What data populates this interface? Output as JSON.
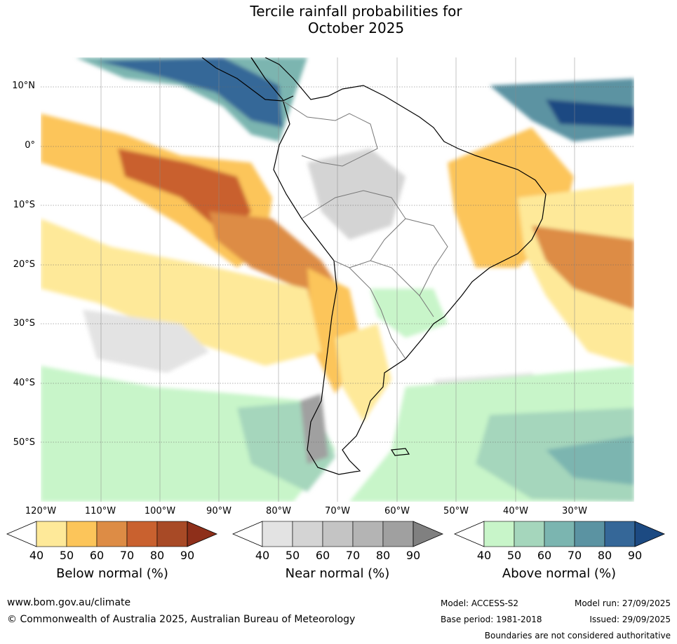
{
  "title_line1": "Tercile rainfall probabilities for",
  "title_line2": "October 2025",
  "y_axis": [
    "10°N",
    "0°",
    "10°S",
    "20°S",
    "30°S",
    "40°S",
    "50°S"
  ],
  "x_axis": [
    "120°W",
    "110°W",
    "100°W",
    "90°W",
    "80°W",
    "70°W",
    "60°W",
    "50°W",
    "40°W",
    "30°W"
  ],
  "legends": [
    {
      "title": "Below normal (%)",
      "ticks": [
        "40",
        "50",
        "60",
        "70",
        "80",
        "90"
      ],
      "colors": [
        "#fee999",
        "#fcc55a",
        "#dd8c45",
        "#c9612f",
        "#a84a26",
        "#8e2f1a"
      ]
    },
    {
      "title": "Near normal (%)",
      "ticks": [
        "40",
        "50",
        "60",
        "70",
        "80",
        "90"
      ],
      "colors": [
        "#e3e3e3",
        "#d4d4d4",
        "#c4c4c4",
        "#b4b4b4",
        "#a0a0a0",
        "#808080"
      ]
    },
    {
      "title": "Above normal (%)",
      "ticks": [
        "40",
        "50",
        "60",
        "70",
        "80",
        "90"
      ],
      "colors": [
        "#c8f5c9",
        "#a5d6bc",
        "#7bb5b0",
        "#5b93a2",
        "#356798",
        "#1c4a82"
      ]
    }
  ],
  "footer": {
    "website": "www.bom.gov.au/climate",
    "copyright": "© Commonwealth of Australia 2025, Australian Bureau of Meteorology",
    "model": "Model: ACCESS-S2",
    "base_period": "Base period: 1981-2018",
    "model_run": "Model run: 27/09/2025",
    "issued": "Issued: 29/09/2025",
    "disclaimer": "Boundaries are not considered authoritative"
  }
}
